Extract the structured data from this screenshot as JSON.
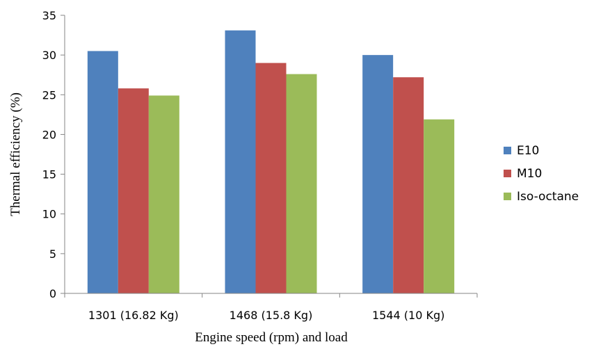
{
  "chart_data": {
    "type": "bar",
    "title": "",
    "xlabel": "Engine speed (rpm) and load",
    "ylabel": "Thermal efficiency (%)",
    "categories": [
      "1301 (16.82 Kg)",
      "1468 (15.8 Kg)",
      "1544 (10 Kg)"
    ],
    "series": [
      {
        "name": "E10",
        "color": "#4F81BD",
        "values": [
          30.5,
          33.1,
          30.0
        ]
      },
      {
        "name": "M10",
        "color": "#C0504D",
        "values": [
          25.8,
          29.0,
          27.2
        ]
      },
      {
        "name": "Iso-octane",
        "color": "#9BBB59",
        "values": [
          24.9,
          27.6,
          21.9
        ]
      }
    ],
    "ylim": [
      0,
      35
    ],
    "yticks": [
      0,
      5,
      10,
      15,
      20,
      25,
      30,
      35
    ],
    "grid": false,
    "legend_position": "right"
  }
}
